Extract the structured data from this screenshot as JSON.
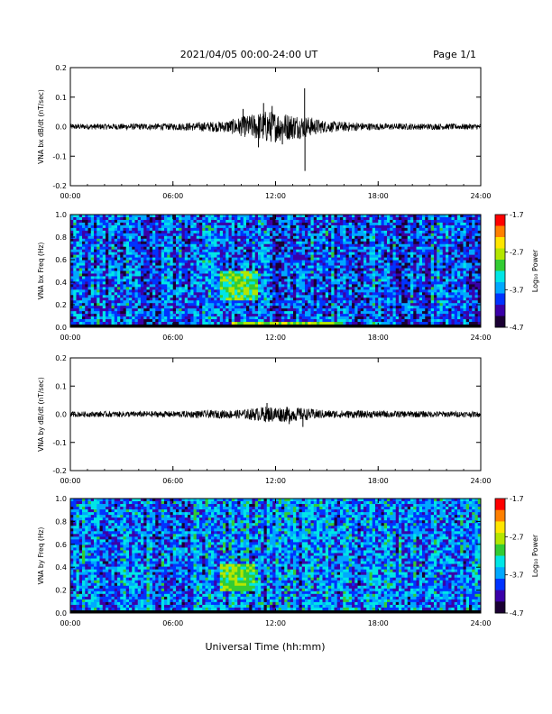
{
  "header": {
    "title": "2021/04/05  00:00-24:00 UT",
    "page": "Page 1/1"
  },
  "colors": {
    "trace": "#000000",
    "spectrogram_background": "#1a6cff",
    "colormap": [
      "#1a0033",
      "#3a00a8",
      "#0033ff",
      "#00a8ff",
      "#00e6e6",
      "#33cc33",
      "#b4e600",
      "#ffe600",
      "#ff8000",
      "#ff0000"
    ]
  },
  "xaxis": {
    "ticks": [
      "00:00",
      "06:00",
      "12:00",
      "18:00",
      "24:00"
    ],
    "label": "Universal Time (hh:mm)"
  },
  "chart_data": [
    {
      "type": "line",
      "ylabel": "VNA bx dB/dt (nT/sec)",
      "ylim": [
        -0.2,
        0.2
      ],
      "yticks": [
        "0.2",
        "0.1",
        "0.0",
        "-0.1",
        "-0.2"
      ],
      "xlim_hours": [
        0,
        24
      ],
      "noise_envelope": [
        {
          "hour": 0,
          "amp": 0.006
        },
        {
          "hour": 6,
          "amp": 0.007
        },
        {
          "hour": 9,
          "amp": 0.012
        },
        {
          "hour": 10.5,
          "amp": 0.025
        },
        {
          "hour": 11.5,
          "amp": 0.035
        },
        {
          "hour": 12.5,
          "amp": 0.03
        },
        {
          "hour": 13.5,
          "amp": 0.025
        },
        {
          "hour": 15,
          "amp": 0.012
        },
        {
          "hour": 18,
          "amp": 0.007
        },
        {
          "hour": 24,
          "amp": 0.006
        }
      ],
      "spikes": [
        {
          "hour": 10.1,
          "value": 0.06
        },
        {
          "hour": 11.0,
          "value": -0.07
        },
        {
          "hour": 11.3,
          "value": 0.08
        },
        {
          "hour": 11.8,
          "value": 0.07
        },
        {
          "hour": 12.4,
          "value": -0.06
        },
        {
          "hour": 13.7,
          "value": 0.13
        },
        {
          "hour": 13.72,
          "value": -0.15
        }
      ]
    },
    {
      "type": "heatmap",
      "ylabel": "VNA bx Freq (Hz)",
      "ylim": [
        0,
        1.0
      ],
      "yticks": [
        "1.0",
        "0.8",
        "0.6",
        "0.4",
        "0.2",
        "0.0"
      ],
      "colorbar": {
        "label": "Log₁₀ Power",
        "ticks": [
          "-1.7",
          "-2.7",
          "-3.7",
          "-4.7"
        ],
        "range": [
          -4.7,
          -1.7
        ]
      },
      "background_level": -3.9,
      "enhancements": [
        {
          "hour_start": 8.7,
          "hour_end": 11.0,
          "freq_low": 0.25,
          "freq_high": 0.5,
          "level": -3.0
        },
        {
          "hour_start": 0,
          "hour_end": 24,
          "freq_low": 0.0,
          "freq_high": 0.03,
          "level": -3.2
        },
        {
          "hour_start": 9.5,
          "hour_end": 16,
          "freq_low": 0.0,
          "freq_high": 0.05,
          "level": -2.8
        }
      ]
    },
    {
      "type": "line",
      "ylabel": "VNA by dB/dt (nT/sec)",
      "ylim": [
        -0.2,
        0.2
      ],
      "yticks": [
        "0.2",
        "0.1",
        "0.0",
        "-0.1",
        "-0.2"
      ],
      "xlim_hours": [
        0,
        24
      ],
      "noise_envelope": [
        {
          "hour": 0,
          "amp": 0.006
        },
        {
          "hour": 6,
          "amp": 0.007
        },
        {
          "hour": 10,
          "amp": 0.01
        },
        {
          "hour": 11.5,
          "amp": 0.018
        },
        {
          "hour": 13,
          "amp": 0.016
        },
        {
          "hour": 15,
          "amp": 0.009
        },
        {
          "hour": 24,
          "amp": 0.006
        }
      ],
      "spikes": [
        {
          "hour": 11.5,
          "value": 0.04
        },
        {
          "hour": 12.8,
          "value": -0.035
        },
        {
          "hour": 13.6,
          "value": -0.045
        }
      ]
    },
    {
      "type": "heatmap",
      "ylabel": "VNA by Freq (Hz)",
      "ylim": [
        0,
        1.0
      ],
      "yticks": [
        "1.0",
        "0.8",
        "0.6",
        "0.4",
        "0.2",
        "0.0"
      ],
      "colorbar": {
        "label": "Log₁₀ Power",
        "ticks": [
          "-1.7",
          "-2.7",
          "-3.7",
          "-4.7"
        ],
        "range": [
          -4.7,
          -1.7
        ]
      },
      "background_level": -3.75,
      "enhancements": [
        {
          "hour_start": 8.8,
          "hour_end": 10.8,
          "freq_low": 0.2,
          "freq_high": 0.42,
          "level": -3.0
        },
        {
          "hour_start": 0,
          "hour_end": 24,
          "freq_low": 0.0,
          "freq_high": 0.03,
          "level": -3.0
        }
      ]
    }
  ]
}
